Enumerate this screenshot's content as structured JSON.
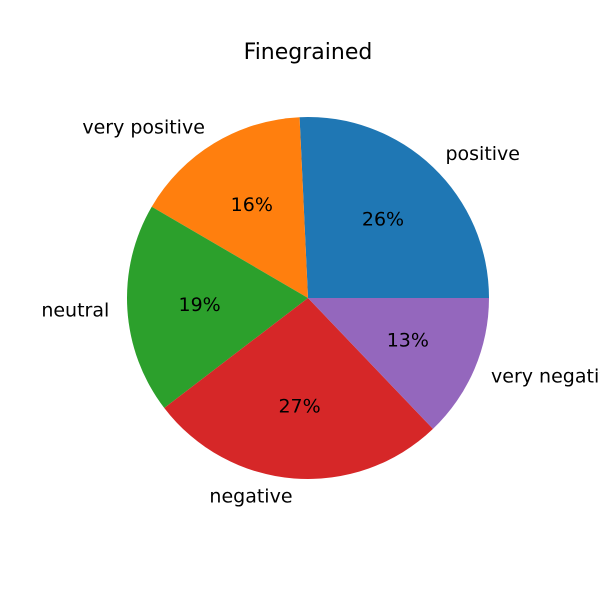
{
  "chart_data": {
    "type": "pie",
    "title": "Finegrained",
    "categories": [
      "positive",
      "very positive",
      "neutral",
      "negative",
      "very negative"
    ],
    "values": [
      26,
      16,
      19,
      27,
      13
    ],
    "value_labels": [
      "26%",
      "16%",
      "19%",
      "27%",
      "13%"
    ],
    "colors": [
      "#1f77b4",
      "#ff7f0e",
      "#2ca02c",
      "#d62728",
      "#9467bd"
    ],
    "start_angle_deg": 0,
    "direction": "counterclockwise",
    "legend": "none"
  }
}
